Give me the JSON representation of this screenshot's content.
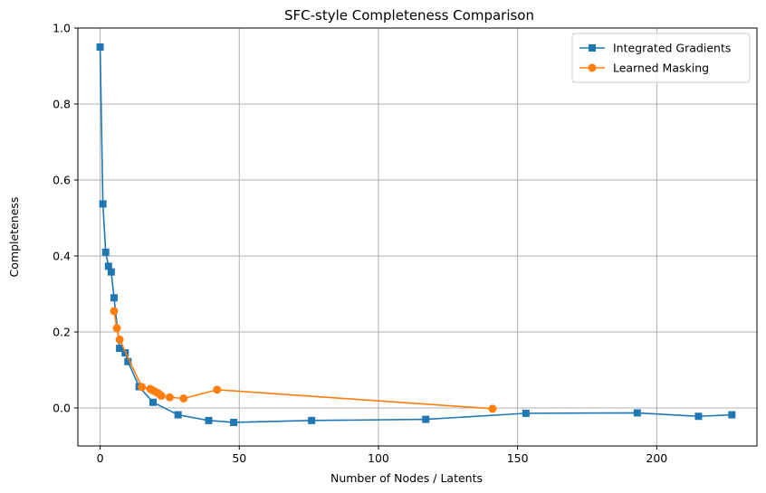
{
  "chart_data": {
    "type": "line",
    "title": "SFC-style Completeness Comparison",
    "xlabel": "Number of Nodes / Latents",
    "ylabel": "Completeness",
    "xlim": [
      -8,
      236
    ],
    "ylim": [
      -0.1,
      1.0
    ],
    "xticks": [
      0,
      50,
      100,
      150,
      200
    ],
    "yticks": [
      -0.0,
      0.2,
      0.4,
      0.6,
      0.8,
      1.0
    ],
    "xtick_labels": [
      "0",
      "50",
      "100",
      "150",
      "200"
    ],
    "ytick_labels": [
      "0.0",
      "0.2",
      "0.4",
      "0.6",
      "0.8",
      "1.0"
    ],
    "grid": true,
    "legend_position": "top-right",
    "series": [
      {
        "name": "Integrated Gradients",
        "color": "#1f77b4",
        "marker": "square",
        "x": [
          0,
          1,
          2,
          3,
          4,
          5,
          7,
          9,
          10,
          14,
          19,
          28,
          39,
          48,
          76,
          117,
          153,
          193,
          215,
          227
        ],
        "y": [
          0.95,
          0.537,
          0.41,
          0.373,
          0.358,
          0.29,
          0.157,
          0.145,
          0.122,
          0.056,
          0.015,
          -0.018,
          -0.033,
          -0.038,
          -0.033,
          -0.03,
          -0.014,
          -0.013,
          -0.022,
          -0.018
        ]
      },
      {
        "name": "Learned Masking",
        "color": "#ff7f0e",
        "marker": "circle",
        "x": [
          5,
          6,
          7,
          15,
          18,
          19,
          20,
          21,
          22,
          25,
          30,
          42,
          141
        ],
        "y": [
          0.255,
          0.21,
          0.18,
          0.055,
          0.05,
          0.046,
          0.042,
          0.038,
          0.032,
          0.028,
          0.025,
          0.048,
          -0.002
        ]
      }
    ]
  }
}
